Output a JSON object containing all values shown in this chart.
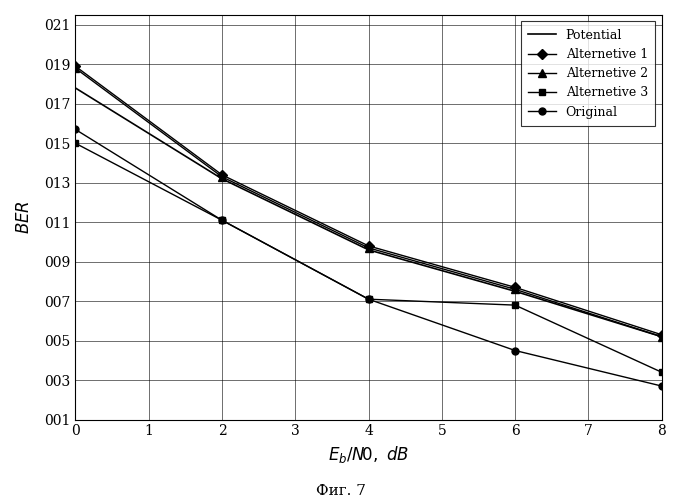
{
  "x": [
    0,
    2,
    4,
    6,
    8
  ],
  "potential": [
    0.178,
    0.132,
    0.096,
    0.075,
    0.052
  ],
  "alternative1": [
    0.189,
    0.134,
    0.098,
    0.077,
    0.053
  ],
  "alternative2": [
    0.188,
    0.133,
    0.097,
    0.076,
    0.052
  ],
  "alternative3": [
    0.15,
    0.111,
    0.071,
    0.068,
    0.034
  ],
  "original": [
    0.157,
    0.111,
    0.071,
    0.045,
    0.027
  ],
  "xlabel": "$\\it{E_b/N}\\!\\it{0,\\ dB}$",
  "ylabel": "$\\it{BER}$",
  "figcaption": "Фиг. 7",
  "ytick_values": [
    0.01,
    0.03,
    0.05,
    0.07,
    0.09,
    0.11,
    0.13,
    0.15,
    0.17,
    0.19,
    0.21
  ],
  "ytick_labels": [
    "001",
    "003",
    "005",
    "007",
    "009",
    "011",
    "013",
    "015",
    "017",
    "019",
    "021"
  ],
  "xticks": [
    0,
    1,
    2,
    3,
    4,
    5,
    6,
    7,
    8
  ],
  "ylim": [
    0.01,
    0.215
  ],
  "xlim": [
    0,
    8
  ],
  "legend_labels": [
    "Potential",
    "Alternetive 1",
    "Alternetive 2",
    "Alternetive 3",
    "Original"
  ],
  "line_color": "#000000"
}
